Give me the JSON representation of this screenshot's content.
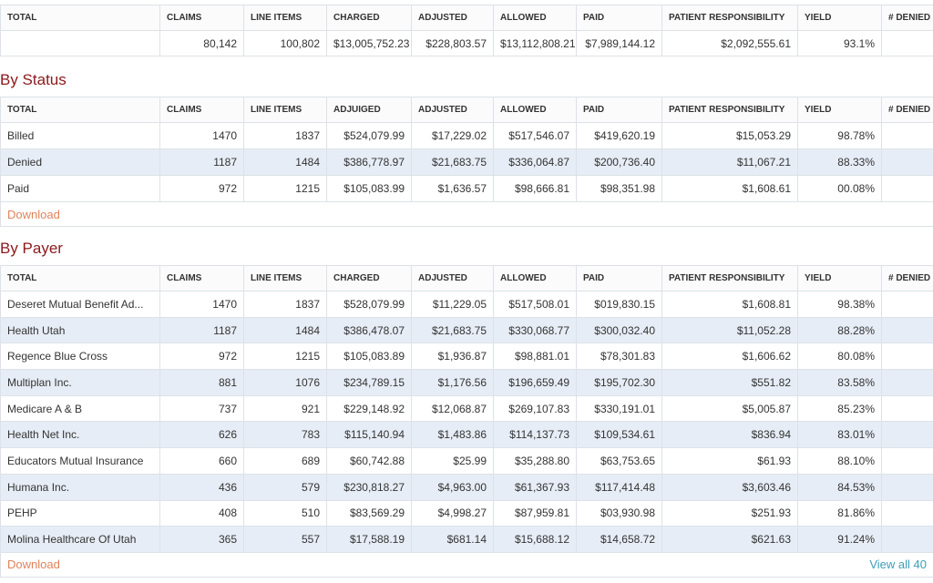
{
  "summary": {
    "headers": [
      "TOTAL",
      "CLAIMS",
      "LINE ITEMS",
      "CHARGED",
      "ADJUSTED",
      "ALLOWED",
      "PAID",
      "PATIENT RESPONSIBILITY",
      "YIELD",
      "# DENIED"
    ],
    "row": [
      "80,142",
      "100,802",
      "$13,005,752.23",
      "$228,803.57",
      "$13,112,808.21",
      "$7,989,144.12",
      "$2,092,555.61",
      "93.1%"
    ]
  },
  "by_status": {
    "title": "By Status",
    "headers": [
      "TOTAL",
      "CLAIMS",
      "LINE ITEMS",
      "ADJUIGED",
      "ADJUSTED",
      "ALLOWED",
      "PAID",
      "PATIENT RESPONSIBILITY",
      "YIELD",
      "# DENIED"
    ],
    "rows": [
      [
        "Billed",
        "1470",
        "1837",
        "$524,079.99",
        "$17,229.02",
        "$517,546.07",
        "$419,620.19",
        "$15,053.29",
        "98.78%"
      ],
      [
        "Denied",
        "1187",
        "1484",
        "$386,778.97",
        "$21,683.75",
        "$336,064.87",
        "$200,736.40",
        "$11,067.21",
        "88.33%"
      ],
      [
        "Paid",
        "972",
        "1215",
        "$105,083.99",
        "$1,636.57",
        "$98,666.81",
        "$98,351.98",
        "$1,608.61",
        "00.08%"
      ]
    ],
    "download": "Download"
  },
  "by_payer": {
    "title": "By Payer",
    "headers": [
      "TOTAL",
      "CLAIMS",
      "LINE ITEMS",
      "CHARGED",
      "ADJUSTED",
      "ALLOWED",
      "PAID",
      "PATIENT RESPONSIBILITY",
      "YIELD",
      "# DENIED"
    ],
    "rows": [
      [
        "Deseret Mutual Benefit Ad...",
        "1470",
        "1837",
        "$528,079.99",
        "$11,229.05",
        "$517,508.01",
        "$019,830.15",
        "$1,608.81",
        "98.38%"
      ],
      [
        "Health Utah",
        "1187",
        "1484",
        "$386,478.07",
        "$21,683.75",
        "$330,068.77",
        "$300,032.40",
        "$11,052.28",
        "88.28%"
      ],
      [
        "Regence Blue Cross",
        "972",
        "1215",
        "$105,083.89",
        "$1,936.87",
        "$98,881.01",
        "$78,301.83",
        "$1,606.62",
        "80.08%"
      ],
      [
        "Multiplan Inc.",
        "881",
        "1076",
        "$234,789.15",
        "$1,176.56",
        "$196,659.49",
        "$195,702.30",
        "$551.82",
        "83.58%"
      ],
      [
        "Medicare A & B",
        "737",
        "921",
        "$229,148.92",
        "$12,068.87",
        "$269,107.83",
        "$330,191.01",
        "$5,005.87",
        "85.23%"
      ],
      [
        "Health Net Inc.",
        "626",
        "783",
        "$115,140.94",
        "$1,483.86",
        "$114,137.73",
        "$109,534.61",
        "$836.94",
        "83.01%"
      ],
      [
        "Educators Mutual Insurance",
        "660",
        "689",
        "$60,742.88",
        "$25.99",
        "$35,288.80",
        "$63,753.65",
        "$61.93",
        "88.10%"
      ],
      [
        "Humana Inc.",
        "436",
        "579",
        "$230,818.27",
        "$4,963.00",
        "$61,367.93",
        "$117,414.48",
        "$3,603.46",
        "84.53%"
      ],
      [
        "PEHP",
        "408",
        "510",
        "$83,569.29",
        "$4,998.27",
        "$87,959.81",
        "$03,930.98",
        "$251.93",
        "81.86%"
      ],
      [
        "Molina Healthcare Of Utah",
        "365",
        "557",
        "$17,588.19",
        "$681.14",
        "$15,688.12",
        "$14,658.72",
        "$621.63",
        "91.24%"
      ]
    ],
    "download": "Download",
    "view_all": "View all 40"
  }
}
